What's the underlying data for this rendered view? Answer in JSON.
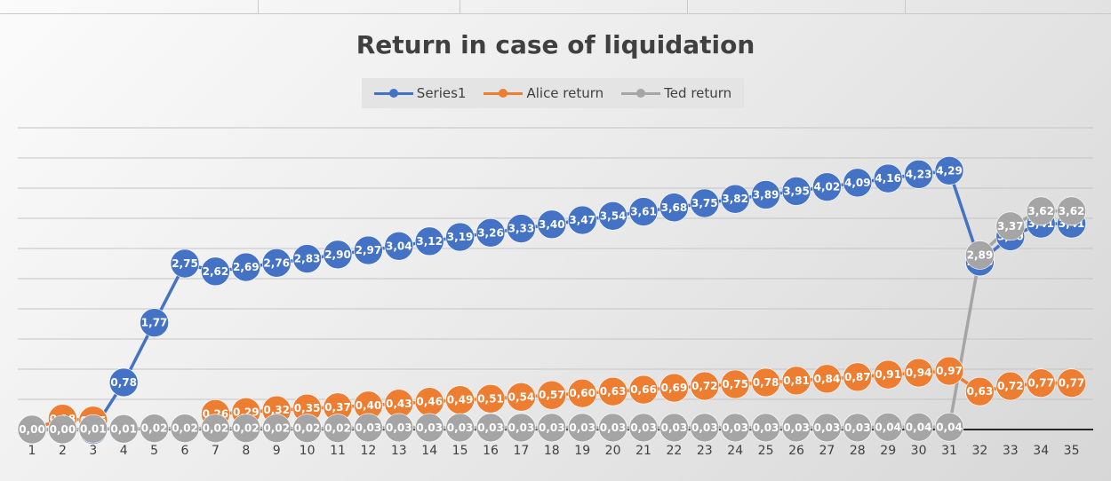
{
  "chart_data": {
    "type": "line",
    "title": "Return in case of liquidation",
    "xlabel": "",
    "ylabel": "",
    "ylim": [
      0,
      5
    ],
    "grid": true,
    "legend_position": "top",
    "categories": [
      "1",
      "2",
      "3",
      "4",
      "5",
      "6",
      "7",
      "8",
      "9",
      "10",
      "11",
      "12",
      "13",
      "14",
      "15",
      "16",
      "17",
      "18",
      "19",
      "20",
      "21",
      "22",
      "23",
      "24",
      "25",
      "26",
      "27",
      "28",
      "29",
      "30",
      "31",
      "32",
      "33",
      "34",
      "35"
    ],
    "series": [
      {
        "name": "Series1",
        "color": "#4472c4",
        "values": [
          0.0,
          0.0,
          -0.01,
          0.78,
          1.77,
          2.75,
          2.62,
          2.69,
          2.76,
          2.83,
          2.9,
          2.97,
          3.04,
          3.12,
          3.19,
          3.26,
          3.33,
          3.4,
          3.47,
          3.54,
          3.61,
          3.68,
          3.75,
          3.82,
          3.89,
          3.95,
          4.02,
          4.09,
          4.16,
          4.23,
          4.29,
          2.78,
          3.2,
          3.41,
          3.41
        ],
        "labels": [
          "0,00",
          "0,00",
          "-0,01",
          "0,78",
          "1,77",
          "2,75",
          "2,62",
          "2,69",
          "2,76",
          "2,83",
          "2,90",
          "2,97",
          "3,04",
          "3,12",
          "3,19",
          "3,26",
          "3,33",
          "3,40",
          "3,47",
          "3,54",
          "3,61",
          "3,68",
          "3,75",
          "3,82",
          "3,89",
          "3,95",
          "4,02",
          "4,09",
          "4,16",
          "4,23",
          "4,29",
          "2,78",
          "3,20",
          "3,41",
          "3,41"
        ]
      },
      {
        "name": "Alice return",
        "color": "#ed7d31",
        "values": [
          0.0,
          0.18,
          0.15,
          null,
          null,
          null,
          0.26,
          0.29,
          0.32,
          0.35,
          0.37,
          0.4,
          0.43,
          0.46,
          0.49,
          0.51,
          0.54,
          0.57,
          0.6,
          0.63,
          0.66,
          0.69,
          0.72,
          0.75,
          0.78,
          0.81,
          0.84,
          0.87,
          0.91,
          0.94,
          0.97,
          0.63,
          0.72,
          0.77,
          0.77
        ],
        "labels": [
          "0,00",
          "0,18",
          "0,15",
          "",
          "",
          "",
          "0,26",
          "0,29",
          "0,32",
          "0,35",
          "0,37",
          "0,40",
          "0,43",
          "0,46",
          "0,49",
          "0,51",
          "0,54",
          "0,57",
          "0,60",
          "0,63",
          "0,66",
          "0,69",
          "0,72",
          "0,75",
          "0,78",
          "0,81",
          "0,84",
          "0,87",
          "0,91",
          "0,94",
          "0,97",
          "0,63",
          "0,72",
          "0,77",
          "0,77"
        ]
      },
      {
        "name": "Ted return",
        "color": "#a5a5a5",
        "values": [
          0.0,
          0.0,
          0.01,
          0.01,
          0.02,
          0.02,
          0.02,
          0.02,
          0.02,
          0.02,
          0.02,
          0.03,
          0.03,
          0.03,
          0.03,
          0.03,
          0.03,
          0.03,
          0.03,
          0.03,
          0.03,
          0.03,
          0.03,
          0.03,
          0.03,
          0.03,
          0.03,
          0.03,
          0.04,
          0.04,
          0.04,
          2.89,
          3.37,
          3.62,
          3.62
        ],
        "labels": [
          "0,00",
          "0,00",
          "0,01",
          "0,01",
          "0,02",
          "0,02",
          "0,02",
          "0,02",
          "0,02",
          "0,02",
          "0,02",
          "0,03",
          "0,03",
          "0,03",
          "0,03",
          "0,03",
          "0,03",
          "0,03",
          "0,03",
          "0,03",
          "0,03",
          "0,03",
          "0,03",
          "0,03",
          "0,03",
          "0,03",
          "0,03",
          "0,03",
          "0,04",
          "0,04",
          "0,04",
          "2,89",
          "3,37",
          "3,62",
          "3,62"
        ]
      }
    ]
  }
}
